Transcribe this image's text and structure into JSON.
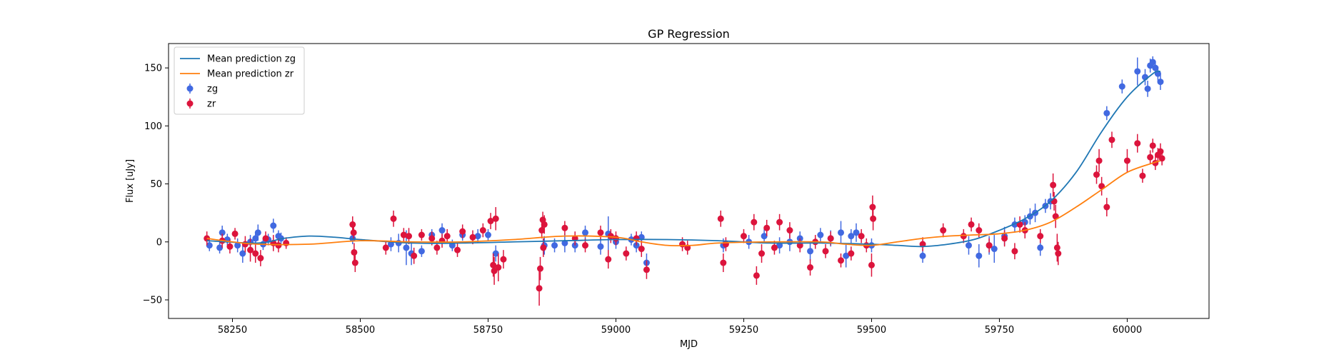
{
  "chart_data": {
    "type": "scatter",
    "title": "GP Regression",
    "xlabel": "MJD",
    "ylabel": "Flux [uJy]",
    "xlim": [
      58125,
      60160
    ],
    "ylim": [
      -66,
      171
    ],
    "xticks": [
      58250,
      58500,
      58750,
      59000,
      59250,
      59500,
      59750,
      60000
    ],
    "yticks": [
      -50,
      0,
      50,
      100,
      150
    ],
    "grid": false,
    "legend_position": "top-left",
    "legend": [
      "Mean prediction zg",
      "Mean prediction zr",
      "zg",
      "zr"
    ],
    "colors": {
      "zg_line": "#1f77b4",
      "zr_line": "#ff7f0e",
      "zg_points": "#4169e1",
      "zr_points": "#dc143c"
    },
    "series": [
      {
        "name": "Mean prediction zg",
        "kind": "line",
        "points": [
          [
            58200,
            1
          ],
          [
            58300,
            -1
          ],
          [
            58350,
            3
          ],
          [
            58400,
            5
          ],
          [
            58450,
            4
          ],
          [
            58500,
            2
          ],
          [
            58600,
            -1
          ],
          [
            58700,
            -1
          ],
          [
            58800,
            0
          ],
          [
            58900,
            1
          ],
          [
            59000,
            2
          ],
          [
            59100,
            2
          ],
          [
            59200,
            1
          ],
          [
            59300,
            -1
          ],
          [
            59400,
            -1
          ],
          [
            59500,
            -2
          ],
          [
            59550,
            -3
          ],
          [
            59600,
            -4
          ],
          [
            59650,
            -2
          ],
          [
            59700,
            2
          ],
          [
            59750,
            10
          ],
          [
            59800,
            20
          ],
          [
            59850,
            35
          ],
          [
            59900,
            60
          ],
          [
            59950,
            95
          ],
          [
            60000,
            125
          ],
          [
            60050,
            145
          ],
          [
            60065,
            147
          ]
        ]
      },
      {
        "name": "Mean prediction zr",
        "kind": "line",
        "points": [
          [
            58200,
            3
          ],
          [
            58250,
            0
          ],
          [
            58300,
            -2
          ],
          [
            58400,
            -2
          ],
          [
            58500,
            1
          ],
          [
            58600,
            0
          ],
          [
            58700,
            0
          ],
          [
            58800,
            2
          ],
          [
            58900,
            5
          ],
          [
            59000,
            4
          ],
          [
            59050,
            0
          ],
          [
            59100,
            -3
          ],
          [
            59150,
            -3
          ],
          [
            59200,
            -1
          ],
          [
            59300,
            0
          ],
          [
            59400,
            0
          ],
          [
            59450,
            -2
          ],
          [
            59500,
            -3
          ],
          [
            59550,
            0
          ],
          [
            59600,
            3
          ],
          [
            59650,
            5
          ],
          [
            59700,
            6
          ],
          [
            59750,
            7
          ],
          [
            59800,
            10
          ],
          [
            59850,
            17
          ],
          [
            59900,
            30
          ],
          [
            59950,
            45
          ],
          [
            60000,
            60
          ],
          [
            60050,
            68
          ],
          [
            60065,
            70
          ]
        ]
      },
      {
        "name": "zg",
        "kind": "errorbar",
        "points": [
          [
            58205,
            -3,
            5
          ],
          [
            58225,
            -5,
            5
          ],
          [
            58230,
            8,
            6
          ],
          [
            58240,
            2,
            5
          ],
          [
            58260,
            -3,
            6
          ],
          [
            58270,
            -10,
            8
          ],
          [
            58285,
            0,
            6
          ],
          [
            58295,
            3,
            5
          ],
          [
            58300,
            8,
            7
          ],
          [
            58310,
            -2,
            5
          ],
          [
            58320,
            2,
            5
          ],
          [
            58330,
            14,
            6
          ],
          [
            58340,
            5,
            5
          ],
          [
            58345,
            3,
            5
          ],
          [
            58485,
            3,
            5
          ],
          [
            58560,
            -2,
            6
          ],
          [
            58575,
            -1,
            8
          ],
          [
            58590,
            -5,
            15
          ],
          [
            58600,
            -10,
            10
          ],
          [
            58620,
            -8,
            5
          ],
          [
            58640,
            6,
            5
          ],
          [
            58660,
            10,
            6
          ],
          [
            58680,
            -3,
            5
          ],
          [
            58700,
            6,
            5
          ],
          [
            58730,
            5,
            6
          ],
          [
            58750,
            6,
            5
          ],
          [
            58765,
            -10,
            7
          ],
          [
            58860,
            -3,
            8
          ],
          [
            58880,
            -3,
            6
          ],
          [
            58900,
            -1,
            8
          ],
          [
            58920,
            -3,
            6
          ],
          [
            58940,
            8,
            6
          ],
          [
            58970,
            -4,
            7
          ],
          [
            58985,
            7,
            15
          ],
          [
            59000,
            0,
            6
          ],
          [
            59030,
            2,
            5
          ],
          [
            59040,
            -3,
            6
          ],
          [
            59050,
            4,
            5
          ],
          [
            59060,
            -18,
            8
          ],
          [
            59210,
            -3,
            6
          ],
          [
            59260,
            0,
            6
          ],
          [
            59290,
            5,
            6
          ],
          [
            59320,
            -3,
            7
          ],
          [
            59340,
            0,
            8
          ],
          [
            59360,
            3,
            6
          ],
          [
            59380,
            -8,
            8
          ],
          [
            59400,
            6,
            6
          ],
          [
            59420,
            3,
            7
          ],
          [
            59440,
            8,
            10
          ],
          [
            59450,
            -12,
            10
          ],
          [
            59460,
            5,
            6
          ],
          [
            59470,
            8,
            8
          ],
          [
            59500,
            -3,
            6
          ],
          [
            59600,
            -12,
            6
          ],
          [
            59690,
            -3,
            8
          ],
          [
            59710,
            -12,
            10
          ],
          [
            59730,
            -3,
            8
          ],
          [
            59740,
            -6,
            12
          ],
          [
            59760,
            5,
            8
          ],
          [
            59780,
            15,
            6
          ],
          [
            59800,
            17,
            6
          ],
          [
            59810,
            22,
            7
          ],
          [
            59820,
            25,
            8
          ],
          [
            59830,
            -5,
            7
          ],
          [
            59840,
            31,
            6
          ],
          [
            59850,
            35,
            7
          ],
          [
            59960,
            111,
            6
          ],
          [
            59990,
            134,
            6
          ],
          [
            60020,
            147,
            12
          ],
          [
            60035,
            142,
            7
          ],
          [
            60040,
            132,
            7
          ],
          [
            60045,
            152,
            6
          ],
          [
            60050,
            155,
            5
          ],
          [
            60055,
            150,
            6
          ],
          [
            60060,
            145,
            6
          ],
          [
            60065,
            138,
            7
          ]
        ]
      },
      {
        "name": "zr",
        "kind": "errorbar",
        "points": [
          [
            58200,
            3,
            6
          ],
          [
            58230,
            1,
            6
          ],
          [
            58245,
            -4,
            6
          ],
          [
            58255,
            7,
            5
          ],
          [
            58275,
            -2,
            7
          ],
          [
            58285,
            -7,
            10
          ],
          [
            58295,
            -10,
            8
          ],
          [
            58305,
            -14,
            7
          ],
          [
            58315,
            3,
            6
          ],
          [
            58330,
            -1,
            7
          ],
          [
            58340,
            -3,
            6
          ],
          [
            58355,
            -1,
            5
          ],
          [
            58485,
            15,
            7
          ],
          [
            58487,
            8,
            6
          ],
          [
            58488,
            -9,
            8
          ],
          [
            58490,
            -18,
            8
          ],
          [
            58550,
            -5,
            6
          ],
          [
            58565,
            20,
            7
          ],
          [
            58585,
            6,
            6
          ],
          [
            58595,
            5,
            7
          ],
          [
            58605,
            -12,
            7
          ],
          [
            58620,
            6,
            5
          ],
          [
            58640,
            3,
            6
          ],
          [
            58650,
            -5,
            6
          ],
          [
            58660,
            1,
            6
          ],
          [
            58670,
            5,
            6
          ],
          [
            58690,
            -7,
            6
          ],
          [
            58700,
            9,
            6
          ],
          [
            58720,
            4,
            6
          ],
          [
            58740,
            10,
            6
          ],
          [
            58755,
            18,
            7
          ],
          [
            58760,
            -20,
            10
          ],
          [
            58762,
            -25,
            12
          ],
          [
            58765,
            20,
            10
          ],
          [
            58770,
            -22,
            12
          ],
          [
            58780,
            -15,
            8
          ],
          [
            58850,
            -40,
            15
          ],
          [
            58852,
            -23,
            10
          ],
          [
            58855,
            10,
            7
          ],
          [
            58857,
            19,
            7
          ],
          [
            58858,
            -5,
            8
          ],
          [
            58860,
            15,
            8
          ],
          [
            58900,
            12,
            6
          ],
          [
            58920,
            3,
            6
          ],
          [
            58940,
            -3,
            6
          ],
          [
            58970,
            8,
            6
          ],
          [
            58985,
            -15,
            8
          ],
          [
            58990,
            5,
            6
          ],
          [
            59000,
            3,
            6
          ],
          [
            59020,
            -10,
            6
          ],
          [
            59040,
            3,
            6
          ],
          [
            59050,
            -6,
            7
          ],
          [
            59060,
            -24,
            8
          ],
          [
            59130,
            -2,
            6
          ],
          [
            59140,
            -5,
            6
          ],
          [
            59205,
            20,
            7
          ],
          [
            59210,
            -18,
            8
          ],
          [
            59215,
            -2,
            6
          ],
          [
            59250,
            5,
            6
          ],
          [
            59270,
            17,
            7
          ],
          [
            59275,
            -29,
            8
          ],
          [
            59285,
            -10,
            8
          ],
          [
            59295,
            12,
            7
          ],
          [
            59310,
            -5,
            6
          ],
          [
            59320,
            17,
            7
          ],
          [
            59340,
            10,
            7
          ],
          [
            59360,
            -3,
            6
          ],
          [
            59380,
            -22,
            7
          ],
          [
            59390,
            0,
            6
          ],
          [
            59410,
            -8,
            6
          ],
          [
            59420,
            3,
            6
          ],
          [
            59440,
            -16,
            6
          ],
          [
            59460,
            -10,
            6
          ],
          [
            59480,
            5,
            6
          ],
          [
            59490,
            -3,
            6
          ],
          [
            59500,
            -20,
            10
          ],
          [
            59502,
            30,
            10
          ],
          [
            59503,
            20,
            10
          ],
          [
            59600,
            -2,
            6
          ],
          [
            59640,
            10,
            6
          ],
          [
            59680,
            5,
            6
          ],
          [
            59695,
            15,
            6
          ],
          [
            59710,
            10,
            6
          ],
          [
            59730,
            -3,
            6
          ],
          [
            59760,
            3,
            7
          ],
          [
            59780,
            -8,
            7
          ],
          [
            59790,
            15,
            7
          ],
          [
            59800,
            10,
            7
          ],
          [
            59830,
            5,
            6
          ],
          [
            59855,
            49,
            10
          ],
          [
            59857,
            35,
            8
          ],
          [
            59860,
            22,
            10
          ],
          [
            59863,
            -5,
            12
          ],
          [
            59865,
            -10,
            10
          ],
          [
            59940,
            58,
            8
          ],
          [
            59945,
            70,
            10
          ],
          [
            59950,
            48,
            8
          ],
          [
            59960,
            30,
            8
          ],
          [
            59970,
            88,
            7
          ],
          [
            60000,
            70,
            10
          ],
          [
            60020,
            85,
            8
          ],
          [
            60030,
            57,
            6
          ],
          [
            60045,
            73,
            6
          ],
          [
            60050,
            83,
            6
          ],
          [
            60055,
            68,
            6
          ],
          [
            60060,
            75,
            6
          ],
          [
            60065,
            78,
            7
          ],
          [
            60068,
            72,
            6
          ]
        ]
      }
    ]
  }
}
